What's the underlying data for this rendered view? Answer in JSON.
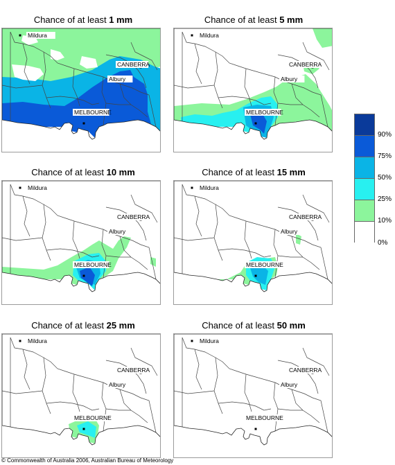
{
  "panels": [
    {
      "prefix": "Chance of at least ",
      "amount": "1 mm"
    },
    {
      "prefix": "Chance of at least ",
      "amount": "5 mm"
    },
    {
      "prefix": "Chance of at least ",
      "amount": "10 mm"
    },
    {
      "prefix": "Chance of at least ",
      "amount": "15 mm"
    },
    {
      "prefix": "Chance of at least ",
      "amount": "25 mm"
    },
    {
      "prefix": "Chance of at least ",
      "amount": "50 mm"
    }
  ],
  "places": {
    "mildura": "Mildura",
    "canberra": "CANBERRA",
    "albury": "Albury",
    "melbourne": "MELBOURNE"
  },
  "legend": {
    "labels": [
      "90%",
      "75%",
      "50%",
      "25%",
      "10%",
      "0%"
    ],
    "colors": [
      "#0a3a9a",
      "#0a5ad8",
      "#0ab4e6",
      "#28f0f0",
      "#8cf59c",
      "#ffffff"
    ]
  },
  "copyright": "© Commonwealth of Australia 2006, Australian Bureau of Meteorology"
}
